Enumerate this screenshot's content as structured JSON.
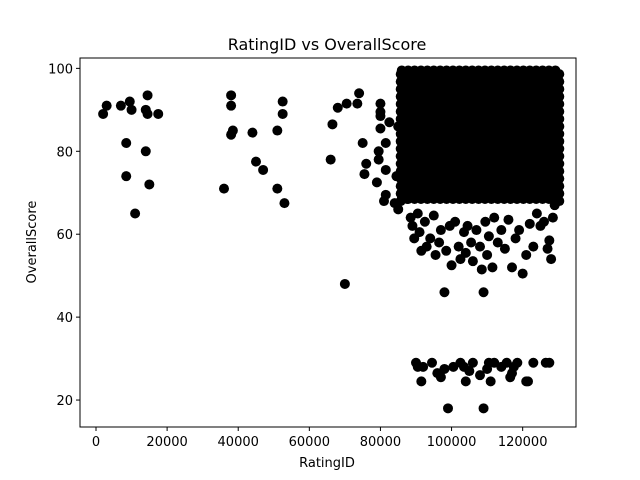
{
  "chart_data": {
    "type": "scatter",
    "title": "RatingID vs OverallScore",
    "xlabel": "RatingID",
    "ylabel": "OverallScore",
    "xlim": [
      -4500,
      135000
    ],
    "ylim": [
      13.5,
      102.5
    ],
    "xticks": [
      0,
      20000,
      40000,
      60000,
      80000,
      100000,
      120000
    ],
    "yticks": [
      20,
      40,
      60,
      80,
      100
    ],
    "grid": false,
    "legend": "none",
    "marker_color": "#000000",
    "dense_region": {
      "x": [
        86000,
        130000
      ],
      "y": [
        68,
        100
      ]
    },
    "points": [
      [
        2000,
        89
      ],
      [
        3000,
        91
      ],
      [
        7000,
        91
      ],
      [
        8500,
        82
      ],
      [
        8500,
        74
      ],
      [
        9500,
        92
      ],
      [
        10000,
        90
      ],
      [
        11000,
        65
      ],
      [
        14000,
        80
      ],
      [
        14000,
        90
      ],
      [
        14500,
        89
      ],
      [
        14500,
        93.5
      ],
      [
        15000,
        72
      ],
      [
        17500,
        89
      ],
      [
        36000,
        71
      ],
      [
        38000,
        93.5
      ],
      [
        38000,
        91
      ],
      [
        38000,
        84
      ],
      [
        38500,
        85
      ],
      [
        44000,
        84.5
      ],
      [
        45000,
        77.5
      ],
      [
        47000,
        75.5
      ],
      [
        51000,
        71
      ],
      [
        51000,
        85
      ],
      [
        52500,
        92
      ],
      [
        52500,
        89
      ],
      [
        53000,
        67.5
      ],
      [
        66000,
        78
      ],
      [
        66500,
        86.5
      ],
      [
        68000,
        90.5
      ],
      [
        70000,
        48
      ],
      [
        70500,
        91.5
      ],
      [
        73500,
        91.5
      ],
      [
        74000,
        94
      ],
      [
        75000,
        82
      ],
      [
        75500,
        74.5
      ],
      [
        76000,
        77
      ],
      [
        79000,
        72.5
      ],
      [
        79500,
        78
      ],
      [
        79500,
        80
      ],
      [
        80000,
        85.5
      ],
      [
        80000,
        88.5
      ],
      [
        80000,
        89.5
      ],
      [
        80000,
        91.5
      ],
      [
        81000,
        68
      ],
      [
        81500,
        69.5
      ],
      [
        81500,
        82
      ],
      [
        81500,
        75.5
      ],
      [
        82500,
        87
      ],
      [
        84000,
        67.5
      ],
      [
        85000,
        66
      ],
      [
        84500,
        74
      ],
      [
        85000,
        86
      ],
      [
        86500,
        69
      ],
      [
        87500,
        68.5
      ],
      [
        88500,
        64
      ],
      [
        89000,
        62
      ],
      [
        89500,
        59
      ],
      [
        90500,
        65
      ],
      [
        91000,
        60.5
      ],
      [
        91500,
        56
      ],
      [
        92500,
        63
      ],
      [
        93000,
        57
      ],
      [
        94000,
        59
      ],
      [
        95000,
        64.5
      ],
      [
        95500,
        55
      ],
      [
        96500,
        58
      ],
      [
        97000,
        61
      ],
      [
        98000,
        46
      ],
      [
        98500,
        56
      ],
      [
        99500,
        62
      ],
      [
        100000,
        52.5
      ],
      [
        101000,
        63
      ],
      [
        102000,
        57
      ],
      [
        102500,
        54
      ],
      [
        103500,
        60.5
      ],
      [
        104000,
        55.5
      ],
      [
        104500,
        62
      ],
      [
        105500,
        58
      ],
      [
        106000,
        53.5
      ],
      [
        107000,
        61
      ],
      [
        108000,
        57
      ],
      [
        108500,
        51.5
      ],
      [
        109000,
        46
      ],
      [
        109500,
        63
      ],
      [
        110000,
        55
      ],
      [
        110500,
        59.5
      ],
      [
        111500,
        52
      ],
      [
        112000,
        64
      ],
      [
        113000,
        58
      ],
      [
        114000,
        61
      ],
      [
        115000,
        56.5
      ],
      [
        116000,
        63.5
      ],
      [
        117000,
        52
      ],
      [
        118000,
        59
      ],
      [
        119000,
        61
      ],
      [
        120000,
        50.5
      ],
      [
        121000,
        55
      ],
      [
        122000,
        62.5
      ],
      [
        123000,
        57
      ],
      [
        124000,
        65
      ],
      [
        125000,
        62
      ],
      [
        126000,
        63
      ],
      [
        127000,
        56.5
      ],
      [
        127500,
        58.5
      ],
      [
        128000,
        54
      ],
      [
        128500,
        64
      ],
      [
        129000,
        67
      ],
      [
        90000,
        29
      ],
      [
        90500,
        28
      ],
      [
        91500,
        24.5
      ],
      [
        92000,
        28
      ],
      [
        94500,
        29
      ],
      [
        96000,
        26.5
      ],
      [
        97000,
        25.5
      ],
      [
        98000,
        27.5
      ],
      [
        99000,
        18
      ],
      [
        100500,
        28
      ],
      [
        102500,
        29
      ],
      [
        103500,
        28
      ],
      [
        104000,
        24.5
      ],
      [
        105000,
        27
      ],
      [
        106000,
        29
      ],
      [
        108000,
        26
      ],
      [
        109000,
        18
      ],
      [
        110000,
        27.5
      ],
      [
        110500,
        29
      ],
      [
        111000,
        24.5
      ],
      [
        112000,
        29
      ],
      [
        114000,
        28
      ],
      [
        115500,
        29
      ],
      [
        116500,
        25.5
      ],
      [
        117000,
        26.5
      ],
      [
        117500,
        28
      ],
      [
        118500,
        29
      ],
      [
        121000,
        24.5
      ],
      [
        121500,
        24.5
      ],
      [
        123000,
        29
      ],
      [
        126500,
        29
      ],
      [
        127500,
        29
      ]
    ]
  }
}
